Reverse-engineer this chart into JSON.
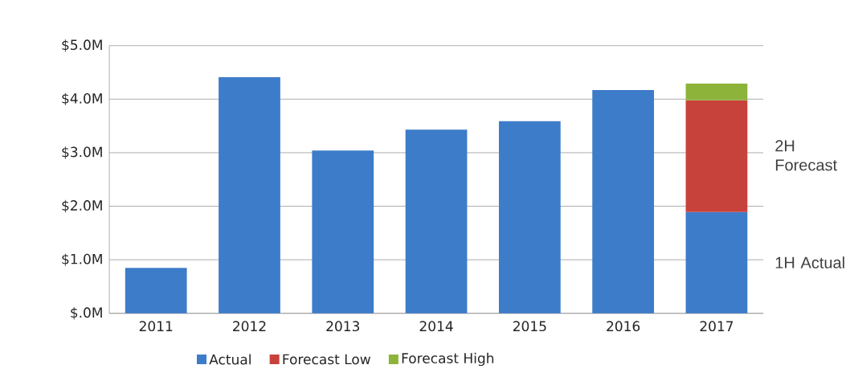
{
  "chart_data": {
    "type": "bar",
    "stacked": true,
    "categories": [
      "2011",
      "2012",
      "2013",
      "2014",
      "2015",
      "2016",
      "2017"
    ],
    "series": [
      {
        "name": "Actual",
        "color": "#3d7cc9",
        "values": [
          0.85,
          4.41,
          3.04,
          3.43,
          3.59,
          4.17,
          1.89
        ]
      },
      {
        "name": "Forecast Low",
        "color": "#c8423c",
        "values": [
          null,
          null,
          null,
          null,
          null,
          null,
          2.09
        ]
      },
      {
        "name": "Forecast High",
        "color": "#8db33a",
        "values": [
          null,
          null,
          null,
          null,
          null,
          null,
          0.31
        ]
      }
    ],
    "ylim": [
      0,
      5
    ],
    "yticks": [
      {
        "value": 0,
        "label": "$.0M"
      },
      {
        "value": 1,
        "label": "$1.0M"
      },
      {
        "value": 2,
        "label": "$2.0M"
      },
      {
        "value": 3,
        "label": "$3.0M"
      },
      {
        "value": 4,
        "label": "$4.0M"
      },
      {
        "value": 5,
        "label": "$5.0M"
      }
    ],
    "grid": "y",
    "legend": "bottom",
    "annotations": [
      "2H Forecast",
      "1H Actual"
    ]
  }
}
